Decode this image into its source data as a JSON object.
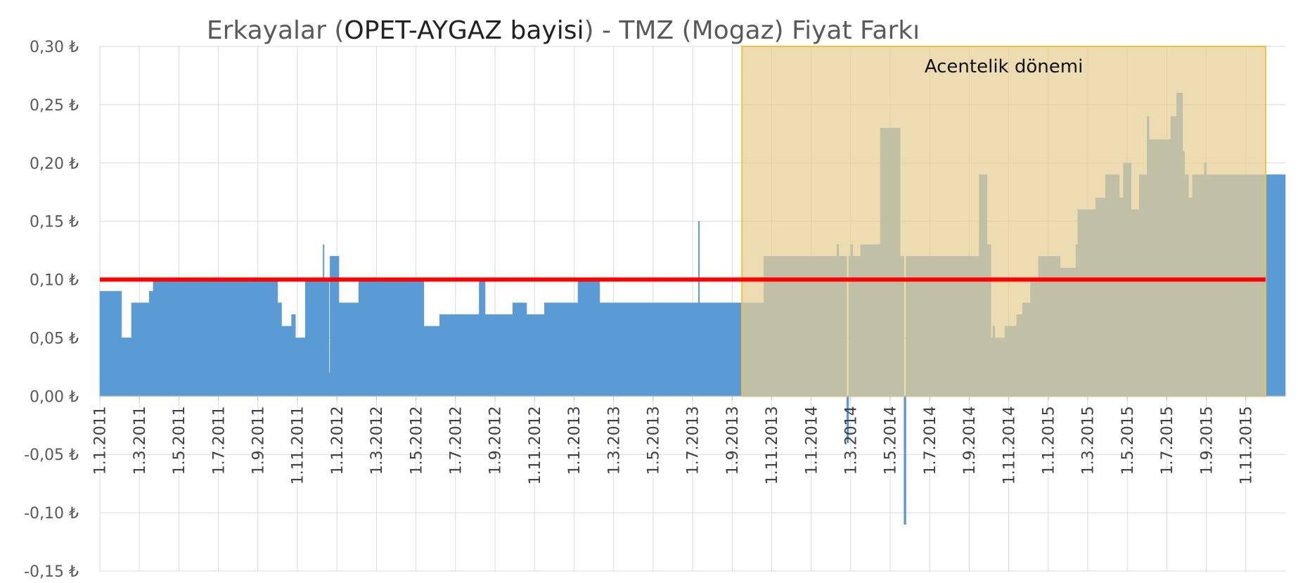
{
  "chart_data": {
    "type": "area",
    "title_parts": [
      "Erkayalar (",
      "OPET-AYGAZ bayisi",
      ") - TMZ (Mogaz) Fiyat Farkı"
    ],
    "x_tick_labels": [
      "1.1.2011",
      "1.3.2011",
      "1.5.2011",
      "1.7.2011",
      "1.9.2011",
      "1.11.2011",
      "1.1.2012",
      "1.3.2012",
      "1.5.2012",
      "1.7.2012",
      "1.9.2012",
      "1.11.2012",
      "1.1.2013",
      "1.3.2013",
      "1.5.2013",
      "1.7.2013",
      "1.9.2013",
      "1.11.2013",
      "1.1.2014",
      "1.3.2014",
      "1.5.2014",
      "1.7.2014",
      "1.9.2014",
      "1.11.2014",
      "1.1.2015",
      "1.3.2015",
      "1.5.2015",
      "1.7.2015",
      "1.9.2015",
      "1.11.2015"
    ],
    "y_tick_labels": [
      "0,30 ₺",
      "0,25 ₺",
      "0,20 ₺",
      "0,15 ₺",
      "0,10 ₺",
      "0,05 ₺",
      "0,00 ₺",
      "-0,05 ₺",
      "-0,10 ₺",
      "-0,15 ₺"
    ],
    "ylim": [
      -0.15,
      0.3
    ],
    "x_range_months": [
      0,
      60
    ],
    "series": [
      {
        "color": "#5b9bd5",
        "points": [
          [
            0,
            0.09
          ],
          [
            1.1,
            0.09
          ],
          [
            1.1,
            0.05
          ],
          [
            1.6,
            0.05
          ],
          [
            1.6,
            0.08
          ],
          [
            2.5,
            0.08
          ],
          [
            2.5,
            0.09
          ],
          [
            2.7,
            0.09
          ],
          [
            2.7,
            0.1
          ],
          [
            9.0,
            0.1
          ],
          [
            9.0,
            0.08
          ],
          [
            9.2,
            0.08
          ],
          [
            9.2,
            0.06
          ],
          [
            9.7,
            0.06
          ],
          [
            9.7,
            0.07
          ],
          [
            9.9,
            0.07
          ],
          [
            9.9,
            0.05
          ],
          [
            10.4,
            0.05
          ],
          [
            10.4,
            0.1
          ],
          [
            11.3,
            0.1
          ],
          [
            11.3,
            0.13
          ],
          [
            11.35,
            0.13
          ],
          [
            11.35,
            0.1
          ],
          [
            11.6,
            0.1
          ],
          [
            11.6,
            0.02
          ],
          [
            11.65,
            0.02
          ],
          [
            11.65,
            0.12
          ],
          [
            12.1,
            0.12
          ],
          [
            12.1,
            0.08
          ],
          [
            13.1,
            0.08
          ],
          [
            13.1,
            0.1
          ],
          [
            16.4,
            0.1
          ],
          [
            16.4,
            0.06
          ],
          [
            17.2,
            0.06
          ],
          [
            17.2,
            0.07
          ],
          [
            19.2,
            0.07
          ],
          [
            19.2,
            0.1
          ],
          [
            19.5,
            0.1
          ],
          [
            19.5,
            0.07
          ],
          [
            20.9,
            0.07
          ],
          [
            20.9,
            0.08
          ],
          [
            21.6,
            0.08
          ],
          [
            21.6,
            0.07
          ],
          [
            22.5,
            0.07
          ],
          [
            22.5,
            0.08
          ],
          [
            24.2,
            0.08
          ],
          [
            24.2,
            0.1
          ],
          [
            25.3,
            0.1
          ],
          [
            25.3,
            0.08
          ],
          [
            30.3,
            0.08
          ],
          [
            30.3,
            0.15
          ],
          [
            30.35,
            0.15
          ],
          [
            30.35,
            0.08
          ],
          [
            33.6,
            0.08
          ],
          [
            33.6,
            0.12
          ],
          [
            37.3,
            0.12
          ],
          [
            37.3,
            0.13
          ],
          [
            37.4,
            0.13
          ],
          [
            37.4,
            0.12
          ],
          [
            37.8,
            0.12
          ],
          [
            37.8,
            -0.04
          ],
          [
            37.9,
            -0.04
          ],
          [
            37.9,
            0.12
          ],
          [
            38.0,
            0.12
          ],
          [
            38.0,
            0.13
          ],
          [
            38.1,
            0.13
          ],
          [
            38.1,
            0.12
          ],
          [
            38.5,
            0.12
          ],
          [
            38.5,
            0.13
          ],
          [
            39.5,
            0.13
          ],
          [
            39.5,
            0.23
          ],
          [
            40.5,
            0.23
          ],
          [
            40.5,
            0.12
          ],
          [
            40.7,
            0.12
          ],
          [
            40.7,
            -0.11
          ],
          [
            40.8,
            -0.11
          ],
          [
            40.8,
            0.12
          ],
          [
            44.5,
            0.12
          ],
          [
            44.5,
            0.19
          ],
          [
            44.9,
            0.19
          ],
          [
            44.9,
            0.13
          ],
          [
            45.1,
            0.13
          ],
          [
            45.1,
            0.05
          ],
          [
            45.2,
            0.05
          ],
          [
            45.2,
            0.06
          ],
          [
            45.3,
            0.06
          ],
          [
            45.3,
            0.05
          ],
          [
            45.8,
            0.05
          ],
          [
            45.8,
            0.06
          ],
          [
            46.4,
            0.06
          ],
          [
            46.4,
            0.07
          ],
          [
            46.7,
            0.07
          ],
          [
            46.7,
            0.08
          ],
          [
            47.1,
            0.08
          ],
          [
            47.1,
            0.1
          ],
          [
            47.5,
            0.1
          ],
          [
            47.5,
            0.12
          ],
          [
            48.6,
            0.12
          ],
          [
            48.6,
            0.11
          ],
          [
            49.4,
            0.11
          ],
          [
            49.4,
            0.13
          ],
          [
            49.5,
            0.13
          ],
          [
            49.5,
            0.16
          ],
          [
            50.4,
            0.16
          ],
          [
            50.4,
            0.17
          ],
          [
            50.9,
            0.17
          ],
          [
            50.9,
            0.19
          ],
          [
            51.6,
            0.19
          ],
          [
            51.6,
            0.17
          ],
          [
            51.8,
            0.17
          ],
          [
            51.8,
            0.2
          ],
          [
            52.2,
            0.2
          ],
          [
            52.2,
            0.16
          ],
          [
            52.6,
            0.16
          ],
          [
            52.6,
            0.19
          ],
          [
            53.0,
            0.19
          ],
          [
            53.0,
            0.24
          ],
          [
            53.1,
            0.24
          ],
          [
            53.1,
            0.22
          ],
          [
            54.2,
            0.22
          ],
          [
            54.2,
            0.24
          ],
          [
            54.5,
            0.24
          ],
          [
            54.5,
            0.26
          ],
          [
            54.8,
            0.26
          ],
          [
            54.8,
            0.21
          ],
          [
            54.9,
            0.21
          ],
          [
            54.9,
            0.19
          ],
          [
            55.1,
            0.19
          ],
          [
            55.1,
            0.17
          ],
          [
            55.3,
            0.17
          ],
          [
            55.3,
            0.19
          ],
          [
            55.9,
            0.19
          ],
          [
            55.9,
            0.2
          ],
          [
            56.0,
            0.2
          ],
          [
            56.0,
            0.19
          ],
          [
            60,
            0.19
          ]
        ]
      }
    ],
    "reference_line": {
      "y": 0.1,
      "x_from": 0,
      "x_to": 59.0,
      "color": "#ff0000"
    },
    "highlight_region": {
      "label": "Acentelik dönemi",
      "x_from": 32.5,
      "x_to": 59.0,
      "y_from": 0.0,
      "y_to": 0.3,
      "fill": "#e6cf94",
      "stroke": "#f0c040"
    },
    "grid": true
  }
}
